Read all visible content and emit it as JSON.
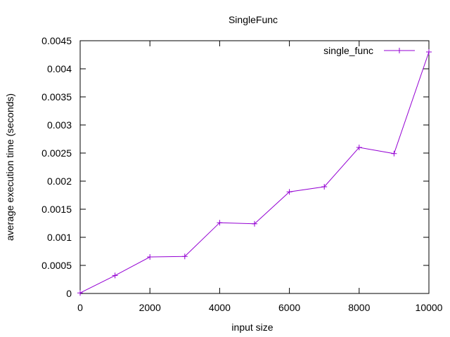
{
  "chart_data": {
    "type": "line",
    "title": "SingleFunc",
    "xlabel": "input size",
    "ylabel": "average execution time (seconds)",
    "xlim": [
      0,
      10000
    ],
    "ylim": [
      0,
      0.0045
    ],
    "x_ticks": [
      0,
      2000,
      4000,
      6000,
      8000,
      10000
    ],
    "x_tick_labels": [
      "0",
      "2000",
      "4000",
      "6000",
      "8000",
      "10000"
    ],
    "y_ticks": [
      0,
      0.0005,
      0.001,
      0.0015,
      0.002,
      0.0025,
      0.003,
      0.0035,
      0.004,
      0.0045
    ],
    "y_tick_labels": [
      "0",
      "0.0005",
      "0.001",
      "0.0015",
      "0.002",
      "0.0025",
      "0.003",
      "0.0035",
      "0.004",
      "0.0045"
    ],
    "grid": false,
    "legend_position": "top-right",
    "series": [
      {
        "name": "single_func",
        "color": "#9400d3",
        "marker": "plus",
        "x": [
          0,
          1000,
          2000,
          3000,
          4000,
          5000,
          6000,
          7000,
          8000,
          9000,
          10000
        ],
        "y": [
          1e-05,
          0.00032,
          0.00065,
          0.00066,
          0.00126,
          0.00124,
          0.00181,
          0.0019,
          0.0026,
          0.00249,
          0.0043
        ]
      }
    ]
  }
}
